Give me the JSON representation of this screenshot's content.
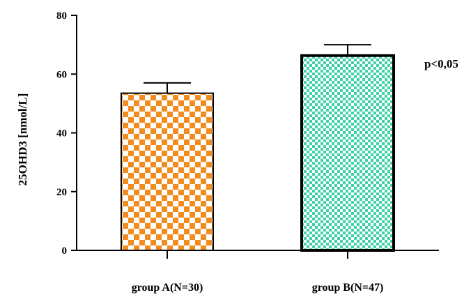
{
  "chart_data": {
    "type": "bar",
    "categories": [
      "group A(N=30)",
      "group B(N=47)"
    ],
    "values": [
      53.5,
      66.3
    ],
    "error_upper": [
      57.0,
      70.0
    ],
    "ylabel": "25OHD3 [nmol/L]",
    "xlabel": "",
    "ylim": [
      0,
      80
    ],
    "yticks": [
      0,
      20,
      40,
      60,
      80
    ],
    "ytick_labels": [
      "0",
      "20",
      "40",
      "60",
      "80"
    ],
    "annotation": "p<0,05",
    "grid": false,
    "bar_patterns": [
      {
        "fill": "#f28c1e",
        "background": "#ffffff",
        "pattern": "checkerboard"
      },
      {
        "fill": "#3fd1a8",
        "background": "#ffffff",
        "pattern": "checkerboard"
      }
    ]
  }
}
